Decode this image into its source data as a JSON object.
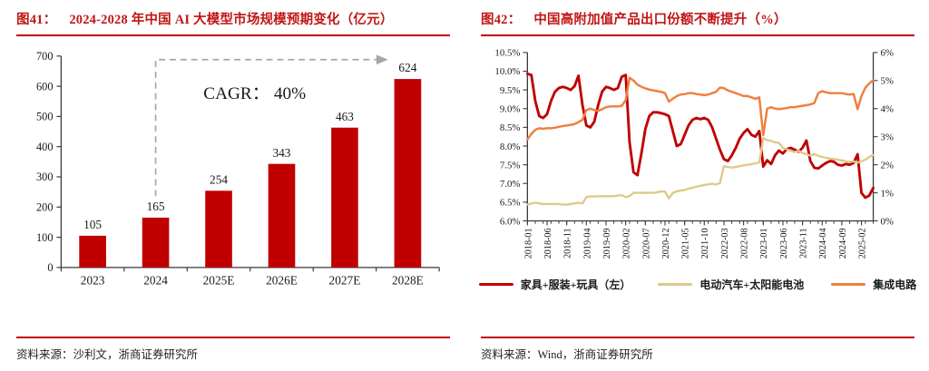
{
  "page": {
    "background": "#ffffff"
  },
  "colors": {
    "accent_red": "#C00000",
    "title_red": "#C01616",
    "arrow_gray": "#A6A6A6",
    "axis_line": "#3a3a3a",
    "text": "#1a1a1a"
  },
  "figure41": {
    "label": "图41：",
    "title": "2024-2028 年中国 AI 大模型市场规模预期变化（亿元）",
    "source": "资料来源：沙利文，浙商证券研究所"
  },
  "figure42": {
    "label": "图42：",
    "title": "中国高附加值产品出口份额不断提升（%）",
    "source": "资料来源：Wind，浙商证券研究所"
  },
  "chart_data": [
    {
      "type": "bar",
      "title": "2024-2028 年中国 AI 大模型市场规模预期变化（亿元）",
      "categories": [
        "2023",
        "2024",
        "2025E",
        "2026E",
        "2027E",
        "2028E"
      ],
      "values": [
        105,
        165,
        254,
        343,
        463,
        624
      ],
      "bar_color": "#C00000",
      "ylim": [
        0,
        700
      ],
      "ytick_step": 100,
      "grid": false,
      "annotation": {
        "text": "CAGR： 40%",
        "arrow_from_category": "2024",
        "arrow_to_category": "2028E",
        "arrow_color": "#A6A6A6"
      }
    },
    {
      "type": "line",
      "title": "中国高附加值产品出口份额不断提升（%）",
      "x_monthly_start": "2018-01",
      "x_tick_labels": [
        "2018-01",
        "2018-06",
        "2018-11",
        "2019-04",
        "2019-09",
        "2020-02",
        "2020-07",
        "2020-12",
        "2021-05",
        "2021-10",
        "2022-03",
        "2022-08",
        "2023-01",
        "2023-06",
        "2023-11",
        "2024-04",
        "2024-09",
        "2025-02"
      ],
      "x_tick_month_index": [
        0,
        5,
        10,
        15,
        20,
        25,
        30,
        35,
        40,
        45,
        50,
        55,
        60,
        65,
        70,
        75,
        80,
        85
      ],
      "left_axis": {
        "min": 6.0,
        "max": 10.5,
        "step": 0.5,
        "tick_labels": [
          "10.5%",
          "10.0%",
          "9.5%",
          "9.0%",
          "8.5%",
          "8.0%",
          "7.5%",
          "7.0%",
          "6.5%",
          "6.0%"
        ]
      },
      "right_axis": {
        "min": 0,
        "max": 6,
        "step": 1,
        "tick_labels": [
          "6%",
          "5%",
          "4%",
          "3%",
          "2%",
          "1%",
          "0%"
        ]
      },
      "grid": false,
      "legend_position": "bottom",
      "series": [
        {
          "name": "家具+服装+玩具（左）",
          "axis": "left",
          "color": "#C00000",
          "values": [
            9.93,
            9.9,
            9.2,
            8.8,
            8.75,
            8.85,
            9.2,
            9.45,
            9.55,
            9.58,
            9.55,
            9.5,
            9.6,
            9.88,
            9.1,
            8.55,
            8.5,
            8.65,
            9.1,
            9.45,
            9.58,
            9.55,
            9.5,
            9.55,
            9.85,
            9.9,
            8.1,
            7.3,
            7.22,
            7.8,
            8.45,
            8.8,
            8.9,
            8.9,
            8.88,
            8.85,
            8.8,
            8.4,
            8.0,
            8.05,
            8.3,
            8.55,
            8.7,
            8.75,
            8.72,
            8.75,
            8.7,
            8.5,
            8.2,
            7.9,
            7.65,
            7.6,
            7.75,
            7.95,
            8.2,
            8.35,
            8.45,
            8.3,
            8.25,
            8.4,
            7.45,
            7.62,
            7.52,
            7.75,
            7.88,
            7.8,
            7.92,
            7.95,
            7.9,
            7.85,
            7.95,
            8.15,
            7.6,
            7.42,
            7.4,
            7.48,
            7.55,
            7.6,
            7.58,
            7.5,
            7.48,
            7.52,
            7.5,
            7.55,
            7.78,
            6.75,
            6.62,
            6.68,
            6.88
          ]
        },
        {
          "name": "电动汽车+太阳能电池",
          "axis": "right",
          "color": "#E0C88A",
          "values": [
            0.58,
            0.62,
            0.65,
            0.62,
            0.6,
            0.6,
            0.6,
            0.6,
            0.6,
            0.58,
            0.58,
            0.6,
            0.62,
            0.65,
            0.62,
            0.85,
            0.87,
            0.87,
            0.88,
            0.88,
            0.88,
            0.88,
            0.88,
            0.9,
            0.92,
            0.85,
            0.88,
            1.0,
            1.0,
            1.0,
            1.0,
            1.0,
            1.0,
            1.02,
            1.05,
            1.05,
            0.8,
            1.0,
            1.05,
            1.08,
            1.1,
            1.15,
            1.18,
            1.22,
            1.25,
            1.28,
            1.3,
            1.32,
            1.3,
            1.35,
            1.95,
            1.92,
            1.9,
            1.92,
            1.95,
            1.98,
            2.0,
            2.02,
            2.05,
            2.08,
            2.95,
            2.88,
            2.85,
            2.8,
            2.78,
            2.6,
            2.55,
            2.5,
            2.45,
            2.5,
            2.42,
            2.38,
            2.32,
            2.38,
            2.32,
            2.28,
            2.25,
            2.22,
            2.2,
            2.18,
            2.15,
            2.12,
            2.1,
            2.12,
            2.08,
            2.12,
            2.18,
            2.28,
            2.35
          ]
        },
        {
          "name": "集成电路",
          "axis": "right",
          "color": "#EE8040",
          "values": [
            2.9,
            3.1,
            3.25,
            3.3,
            3.28,
            3.3,
            3.3,
            3.32,
            3.35,
            3.38,
            3.4,
            3.42,
            3.45,
            3.52,
            3.6,
            3.95,
            4.0,
            3.95,
            3.92,
            3.98,
            4.05,
            4.08,
            4.08,
            4.08,
            4.1,
            4.3,
            5.1,
            5.0,
            4.85,
            4.78,
            4.72,
            4.68,
            4.65,
            4.62,
            4.6,
            4.55,
            4.25,
            4.35,
            4.45,
            4.5,
            4.52,
            4.55,
            4.55,
            4.52,
            4.5,
            4.48,
            4.5,
            4.55,
            4.6,
            4.75,
            4.73,
            4.65,
            4.6,
            4.55,
            4.5,
            4.45,
            4.45,
            4.4,
            4.35,
            4.4,
            3.05,
            4.0,
            4.05,
            4.0,
            3.98,
            4.0,
            4.02,
            4.05,
            4.05,
            4.08,
            4.1,
            4.12,
            4.15,
            4.2,
            4.55,
            4.62,
            4.58,
            4.55,
            4.55,
            4.55,
            4.55,
            4.52,
            4.5,
            4.52,
            3.98,
            4.45,
            4.75,
            4.9,
            5.02
          ]
        }
      ]
    }
  ]
}
